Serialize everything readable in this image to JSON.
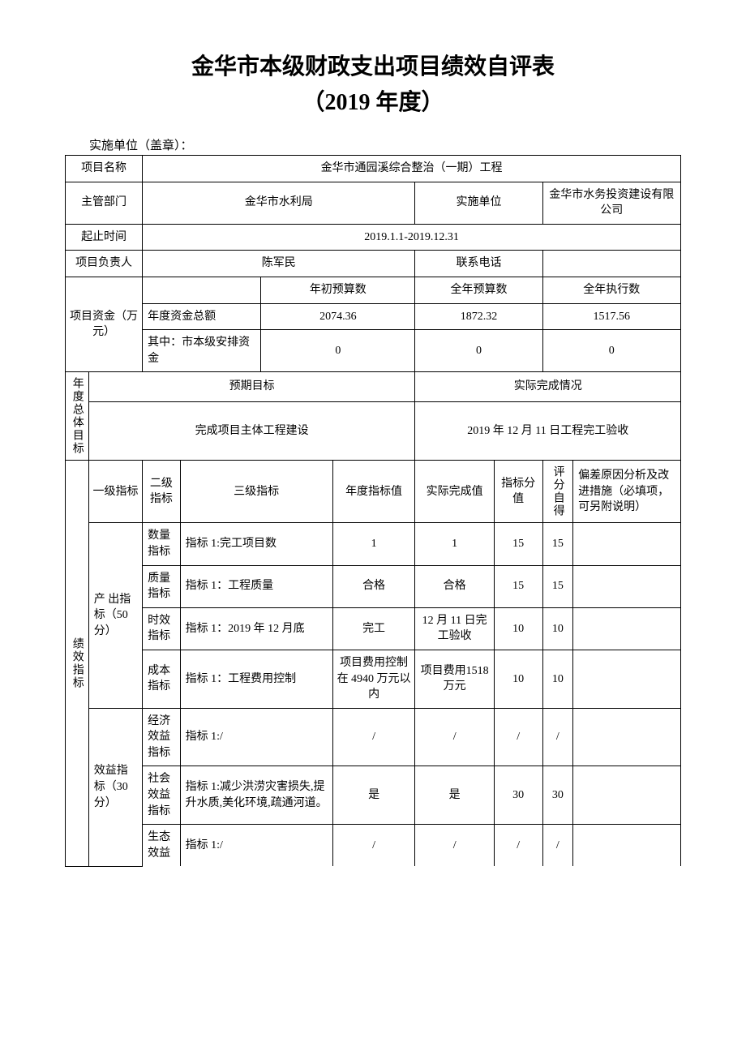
{
  "header": {
    "title": "金华市本级财政支出项目绩效自评表",
    "subtitle": "（2019 年度）",
    "unit_label": "实施单位（盖章）："
  },
  "info": {
    "project_name_label": "项目名称",
    "project_name": "金华市通园溪综合整治（一期）工程",
    "supervisor_label": "主管部门",
    "supervisor": "金华市水利局",
    "impl_unit_label": "实施单位",
    "impl_unit": "金华市水务投资建设有限公司",
    "period_label": "起止时间",
    "period": "2019.1.1-2019.12.31",
    "leader_label": "项目负责人",
    "leader": "陈军民",
    "phone_label": "联系电话",
    "phone": ""
  },
  "funds": {
    "label": "项目资金（万元）",
    "col_initial": "年初预算数",
    "col_full": "全年预算数",
    "col_exec": "全年执行数",
    "row_total_label": "年度资金总额",
    "row_total": {
      "initial": "2074.36",
      "full": "1872.32",
      "exec": "1517.56"
    },
    "row_city_label": "其中：市本级安排资金",
    "row_city": {
      "initial": "0",
      "full": "0",
      "exec": "0"
    }
  },
  "goals": {
    "side_label": "年度总体目标",
    "expected_label": "预期目标",
    "actual_label": "实际完成情况",
    "expected": "完成项目主体工程建设",
    "actual": "2019 年 12 月 11 日工程完工验收"
  },
  "indicators": {
    "side_label": "绩效指标",
    "head": {
      "lvl1": "一级指标",
      "lvl2": "二级指标",
      "lvl3": "三级指标",
      "annual": "年度指标值",
      "actual": "实际完成值",
      "score": "指标分值",
      "self": "评分自得",
      "deviation": "偏差原因分析及改进措施（必填项，可另附说明）"
    },
    "groups": [
      {
        "lvl1": "产 出指标（50 分）",
        "rows": [
          {
            "lvl2": "数量指标",
            "lvl3": "指标 1:完工项目数",
            "annual": "1",
            "actual": "1",
            "score": "15",
            "self": "15",
            "dev": ""
          },
          {
            "lvl2": "质量指标",
            "lvl3": "指标 1：工程质量",
            "annual": "合格",
            "actual": "合格",
            "score": "15",
            "self": "15",
            "dev": ""
          },
          {
            "lvl2": "时效指标",
            "lvl3": "指标 1：2019 年 12 月底",
            "annual": "完工",
            "actual": "12 月 11 日完工验收",
            "score": "10",
            "self": "10",
            "dev": ""
          },
          {
            "lvl2": "成本指标",
            "lvl3": "指标 1：工程费用控制",
            "annual": "项目费用控制在 4940 万元以内",
            "actual": "项目费用1518 万元",
            "score": "10",
            "self": "10",
            "dev": ""
          }
        ]
      },
      {
        "lvl1": "效益指标（30分）",
        "rows": [
          {
            "lvl2": "经济效益指标",
            "lvl3": "指标 1:/",
            "annual": "/",
            "actual": "/",
            "score": "/",
            "self": "/",
            "dev": ""
          },
          {
            "lvl2": "社会效益指标",
            "lvl3": "指标 1:减少洪涝灾害损失,提升水质,美化环境,疏通河道。",
            "annual": "是",
            "actual": "是",
            "score": "30",
            "self": "30",
            "dev": ""
          },
          {
            "lvl2": "生态效益",
            "lvl3": "指标 1:/",
            "annual": "/",
            "actual": "/",
            "score": "/",
            "self": "/",
            "dev": ""
          }
        ]
      }
    ]
  }
}
